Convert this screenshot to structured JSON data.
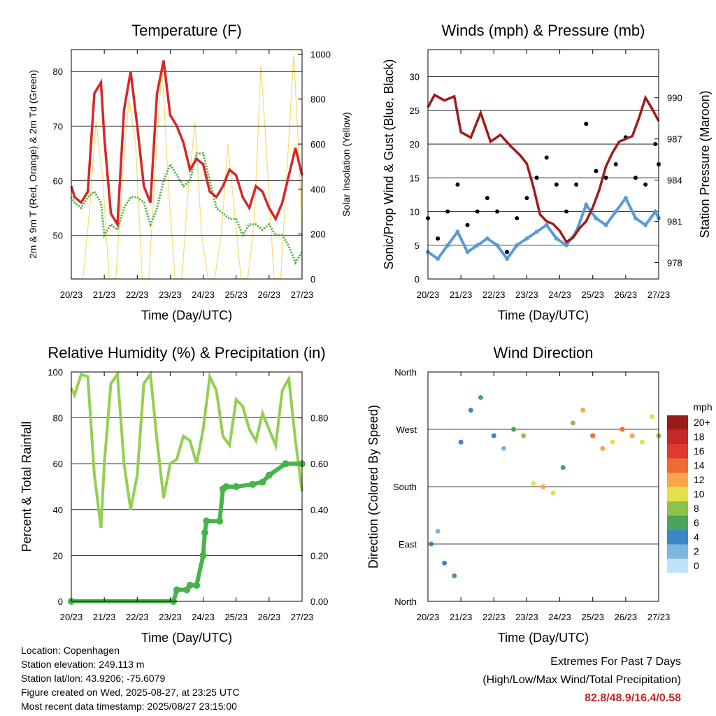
{
  "x_ticks": [
    "20/23",
    "21/23",
    "22/23",
    "23/23",
    "24/23",
    "25/23",
    "26/23",
    "27/23"
  ],
  "colors": {
    "temp": "#d62728",
    "dew": "#4aaa3a",
    "solar": "#f7dc6f",
    "wind": "#5b9bd5",
    "gust": "#000000",
    "pressure": "#a31a1a",
    "rh": "#92d050",
    "rain": "#47b44a"
  },
  "chart_data": [
    {
      "type": "line",
      "title": "Temperature (F)",
      "xlabel": "Time (Day/UTC)",
      "ylabel": "2m & 9m T (Red, Orange) & 2m Td (Green)",
      "y2label": "Solar Insolation (Yellow)",
      "ylim": [
        42,
        84
      ],
      "y2lim": [
        0,
        1020
      ],
      "yticks": [
        50,
        60,
        70,
        80
      ],
      "y2ticks": [
        0,
        200,
        400,
        600,
        800,
        1000
      ],
      "grid": true,
      "series": [
        {
          "axis": "left",
          "color": "temp",
          "x": [
            0,
            0.1,
            0.3,
            0.5,
            0.7,
            0.9,
            1.0,
            1.2,
            1.4,
            1.6,
            1.8,
            2.0,
            2.2,
            2.4,
            2.6,
            2.8,
            3.0,
            3.2,
            3.4,
            3.6,
            3.8,
            4.0,
            4.2,
            4.4,
            4.6,
            4.8,
            5.0,
            5.2,
            5.4,
            5.6,
            5.8,
            6.0,
            6.2,
            6.4,
            6.6,
            6.8,
            7.0
          ],
          "y": [
            59,
            57,
            56,
            58,
            76,
            78,
            68,
            54,
            52,
            73,
            80,
            70,
            59,
            56,
            76,
            82,
            72,
            70,
            67,
            62,
            64,
            63,
            58,
            57,
            59,
            62,
            61,
            57,
            55,
            59,
            58,
            55,
            53,
            56,
            61,
            66,
            61
          ]
        },
        {
          "axis": "left",
          "color": "dew",
          "x": [
            0,
            0.1,
            0.3,
            0.5,
            0.7,
            0.9,
            1.0,
            1.2,
            1.4,
            1.6,
            1.8,
            2.0,
            2.2,
            2.4,
            2.6,
            2.8,
            3.0,
            3.2,
            3.4,
            3.6,
            3.8,
            4.0,
            4.2,
            4.4,
            4.6,
            4.8,
            5.0,
            5.2,
            5.4,
            5.6,
            5.8,
            6.0,
            6.2,
            6.4,
            6.6,
            6.8,
            7.0
          ],
          "y": [
            57,
            56,
            55,
            57,
            58,
            56,
            50,
            52,
            51,
            55,
            57,
            57,
            56,
            52,
            55,
            60,
            63,
            61,
            59,
            60,
            65,
            65,
            60,
            55,
            54,
            53,
            53,
            50,
            52,
            52,
            51,
            52,
            50,
            50,
            48,
            45,
            47
          ]
        },
        {
          "axis": "right",
          "color": "solar",
          "x": [
            0,
            0.35,
            0.55,
            0.75,
            0.95,
            1.15,
            1.35,
            1.55,
            1.75,
            1.95,
            2.15,
            2.35,
            2.55,
            2.75,
            2.95,
            3.15,
            3.35,
            3.55,
            3.75,
            3.95,
            4.15,
            4.35,
            4.55,
            4.75,
            4.95,
            5.15,
            5.35,
            5.55,
            5.75,
            5.95,
            6.15,
            6.35,
            6.55,
            6.75,
            6.95,
            7.0
          ],
          "y": [
            0,
            0,
            300,
            700,
            450,
            0,
            0,
            450,
            800,
            600,
            0,
            0,
            500,
            950,
            400,
            0,
            0,
            400,
            700,
            200,
            0,
            0,
            200,
            600,
            300,
            0,
            0,
            250,
            950,
            500,
            0,
            0,
            500,
            1000,
            400,
            0
          ]
        }
      ]
    },
    {
      "type": "scatter",
      "title": "Winds (mph) & Pressure (mb)",
      "xlabel": "Time (Day/UTC)",
      "ylabel": "Sonic/Prop Wind & Gust (Blue, Black)",
      "y2label": "Station Pressure (Maroon)",
      "ylim": [
        0,
        34
      ],
      "y2lim": [
        976.8,
        993.5
      ],
      "yticks": [
        0,
        5,
        10,
        15,
        20,
        25,
        30
      ],
      "y2ticks": [
        978,
        981,
        984,
        987,
        990
      ],
      "grid": true,
      "series": [
        {
          "axis": "left",
          "color": "wind",
          "x": [
            0,
            0.3,
            0.6,
            0.9,
            1.2,
            1.5,
            1.8,
            2.1,
            2.4,
            2.7,
            3.0,
            3.3,
            3.6,
            3.9,
            4.2,
            4.5,
            4.8,
            5.1,
            5.4,
            5.7,
            6.0,
            6.3,
            6.6,
            6.9,
            7.0
          ],
          "y": [
            4,
            3,
            5,
            7,
            4,
            5,
            6,
            5,
            3,
            5,
            6,
            7,
            8,
            6,
            5,
            7,
            11,
            9,
            8,
            10,
            12,
            9,
            8,
            10,
            9
          ]
        },
        {
          "axis": "left",
          "color": "gust",
          "x": [
            0,
            0.3,
            0.6,
            0.9,
            1.2,
            1.5,
            1.8,
            2.1,
            2.4,
            2.7,
            3.0,
            3.3,
            3.6,
            3.9,
            4.2,
            4.5,
            4.8,
            5.1,
            5.4,
            5.7,
            6.0,
            6.3,
            6.6,
            6.9,
            7.0
          ],
          "y": [
            9,
            6,
            10,
            14,
            8,
            10,
            12,
            10,
            4,
            9,
            12,
            15,
            18,
            14,
            10,
            14,
            23,
            16,
            15,
            17,
            21,
            15,
            14,
            20,
            17
          ]
        },
        {
          "axis": "right",
          "color": "pressure",
          "x": [
            0,
            0.2,
            0.5,
            0.8,
            1.0,
            1.3,
            1.6,
            1.9,
            2.2,
            2.5,
            2.8,
            3.0,
            3.2,
            3.4,
            3.6,
            3.8,
            4.0,
            4.2,
            4.4,
            4.6,
            4.8,
            5.0,
            5.2,
            5.4,
            5.6,
            5.8,
            6.0,
            6.2,
            6.4,
            6.6,
            6.8,
            7.0
          ],
          "y": [
            989.3,
            990.2,
            989.8,
            990.1,
            987.5,
            987.1,
            988.9,
            986.8,
            987.3,
            986.5,
            985.8,
            985.2,
            983.5,
            981.5,
            981,
            980.8,
            980.3,
            979.5,
            979.8,
            980.5,
            981,
            982,
            983.3,
            985,
            986,
            986.8,
            987,
            987.2,
            988.5,
            990,
            989.2,
            988.3
          ]
        }
      ]
    },
    {
      "type": "line",
      "title": "Relative Humidity (%) & Precipitation (in)",
      "xlabel": "Time (Day/UTC)",
      "ylabel": "Percent & Total Rainfall",
      "ylim": [
        0,
        100
      ],
      "y2lim": [
        0,
        1.0
      ],
      "yticks": [
        0,
        20,
        40,
        60,
        80,
        100
      ],
      "y2ticks": [
        "0.00",
        "0.20",
        "0.40",
        "0.60",
        "0.80"
      ],
      "grid": true,
      "series": [
        {
          "axis": "left",
          "color": "rh",
          "x": [
            0,
            0.1,
            0.3,
            0.5,
            0.7,
            0.9,
            1.0,
            1.2,
            1.4,
            1.6,
            1.8,
            2.0,
            2.2,
            2.4,
            2.6,
            2.8,
            3.0,
            3.2,
            3.4,
            3.6,
            3.8,
            4.0,
            4.2,
            4.4,
            4.6,
            4.8,
            5.0,
            5.2,
            5.4,
            5.6,
            5.8,
            6.0,
            6.2,
            6.4,
            6.6,
            6.8,
            7.0
          ],
          "y": [
            93,
            90,
            99,
            98,
            55,
            32,
            60,
            95,
            99,
            60,
            40,
            55,
            95,
            99,
            70,
            45,
            60,
            62,
            72,
            70,
            60,
            75,
            98,
            92,
            72,
            68,
            88,
            85,
            75,
            70,
            82,
            75,
            68,
            92,
            97,
            70,
            48
          ]
        },
        {
          "axis": "right",
          "color": "rain",
          "x": [
            0,
            3.1,
            3.2,
            3.5,
            3.6,
            3.8,
            4.0,
            4.05,
            4.1,
            4.5,
            4.6,
            4.7,
            5.0,
            5.5,
            5.8,
            6.0,
            6.5,
            7.0
          ],
          "y": [
            0.0,
            0.0,
            0.05,
            0.05,
            0.07,
            0.07,
            0.2,
            0.3,
            0.35,
            0.35,
            0.49,
            0.5,
            0.5,
            0.51,
            0.52,
            0.55,
            0.6,
            0.6
          ]
        }
      ]
    },
    {
      "type": "scatter",
      "title": "Wind Direction",
      "xlabel": "Time (Day/UTC)",
      "ylabel": "Direction (Colored By Speed)",
      "ylim": [
        0,
        360
      ],
      "yticks": [
        "North",
        "East",
        "South",
        "West",
        "North"
      ],
      "grid": true,
      "legend_title": "mph",
      "legend": [
        "20+",
        "18",
        "16",
        "14",
        "12",
        "10",
        "8",
        "6",
        "4",
        "2",
        "0"
      ],
      "legend_colors": [
        "#9b1b1b",
        "#c62828",
        "#e0392f",
        "#f06a33",
        "#f9a648",
        "#e5e14a",
        "#8dc24c",
        "#4aa45a",
        "#3d86c6",
        "#7fb6e0",
        "#bfe3f7"
      ],
      "series": [
        {
          "name": "",
          "x": [
            0.1,
            0.3,
            0.5,
            0.8,
            1.0,
            1.3,
            1.6,
            2.0,
            2.3,
            2.6,
            2.9,
            3.2,
            3.5,
            3.8,
            4.1,
            4.4,
            4.7,
            5.0,
            5.3,
            5.6,
            5.9,
            6.2,
            6.5,
            6.8,
            7.0
          ],
          "y": [
            90,
            110,
            60,
            40,
            250,
            300,
            320,
            260,
            240,
            270,
            260,
            185,
            180,
            170,
            210,
            280,
            300,
            260,
            240,
            250,
            270,
            260,
            250,
            290,
            260
          ],
          "speed": [
            3,
            2,
            4,
            6,
            3,
            4,
            5,
            4,
            2,
            6,
            8,
            10,
            11,
            9,
            6,
            7,
            12,
            13,
            11,
            10,
            14,
            12,
            9,
            10,
            8
          ]
        }
      ]
    }
  ],
  "info": {
    "location": "Location: Copenhagen",
    "elevation": "Station elevation: 249.113 m",
    "latlon": "Station lat/lon: 43.9206; -75.6079",
    "created": "Figure created on Wed, 2025-08-27, at 23:25 UTC",
    "timestamp": "Most recent data timestamp: 2025/08/27 23:15:00"
  },
  "extremes": {
    "heading": "Extremes For Past 7 Days",
    "subheading": "(High/Low/Max Wind/Total Precipitation)",
    "values": "82.8/48.9/16.4/0.58"
  }
}
